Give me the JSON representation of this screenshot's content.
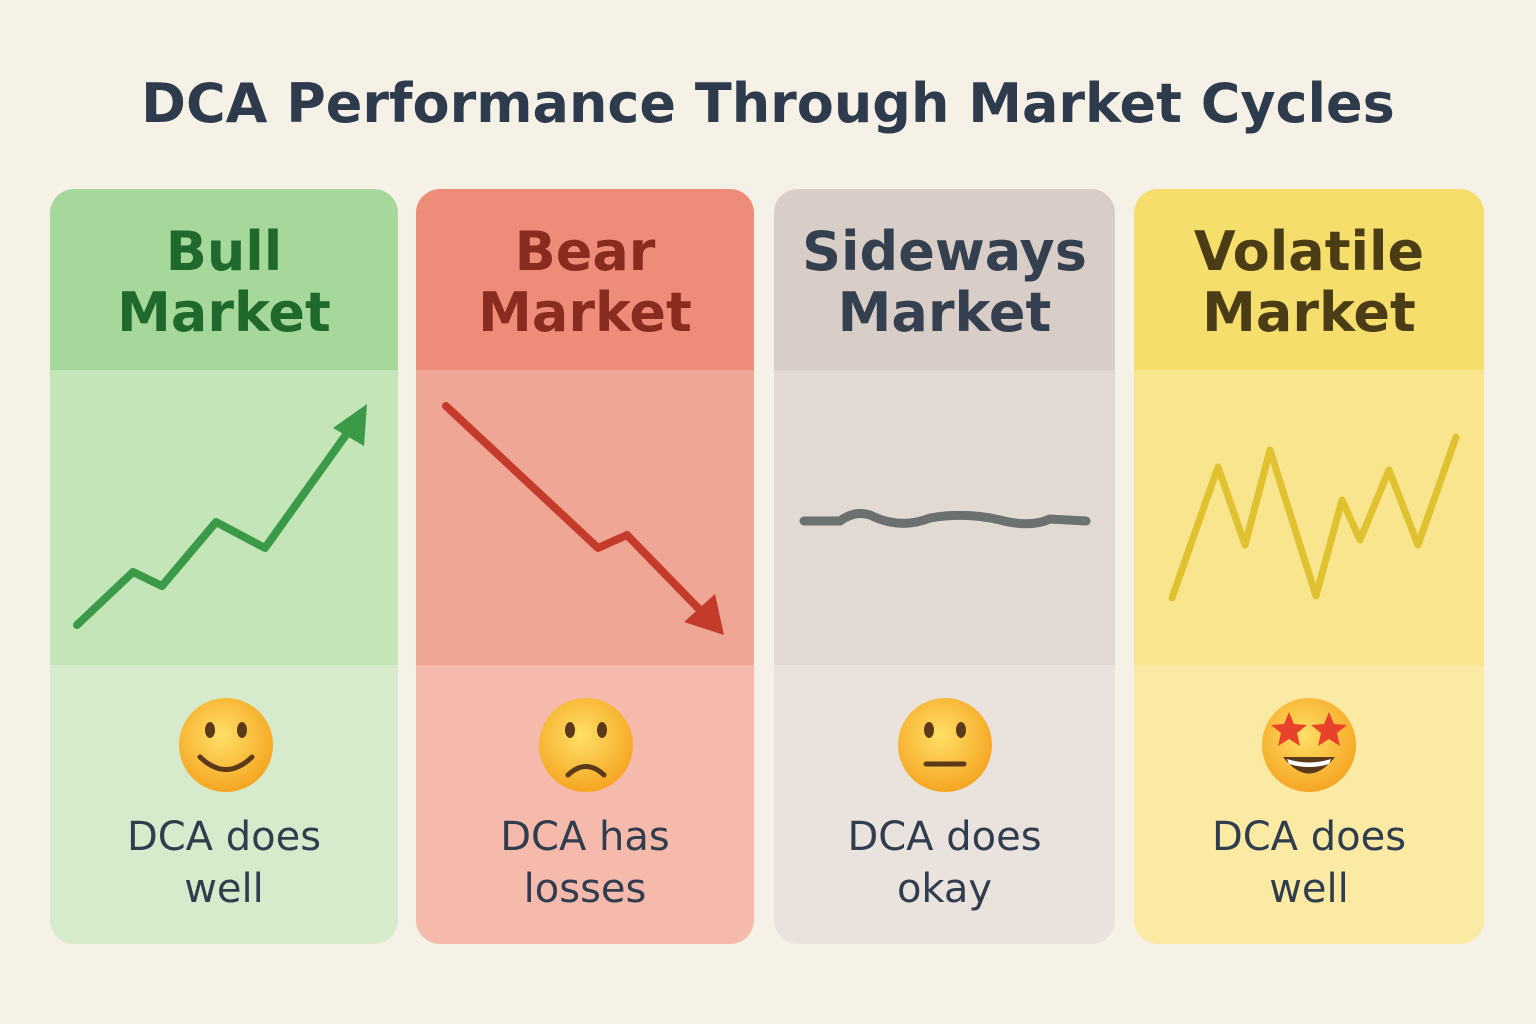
{
  "title": "DCA Performance Through Market Cycles",
  "cards": [
    {
      "title": [
        "Bull",
        "Market"
      ],
      "caption": [
        "DCA does",
        "well"
      ]
    },
    {
      "title": [
        "Bear",
        "Market"
      ],
      "caption": [
        "DCA has",
        "losses"
      ]
    },
    {
      "title": [
        "Sideways",
        "Market"
      ],
      "caption": [
        "DCA does",
        "okay"
      ]
    },
    {
      "title": [
        "Volatile",
        "Market"
      ],
      "caption": [
        "DCA does",
        "well"
      ]
    }
  ]
}
